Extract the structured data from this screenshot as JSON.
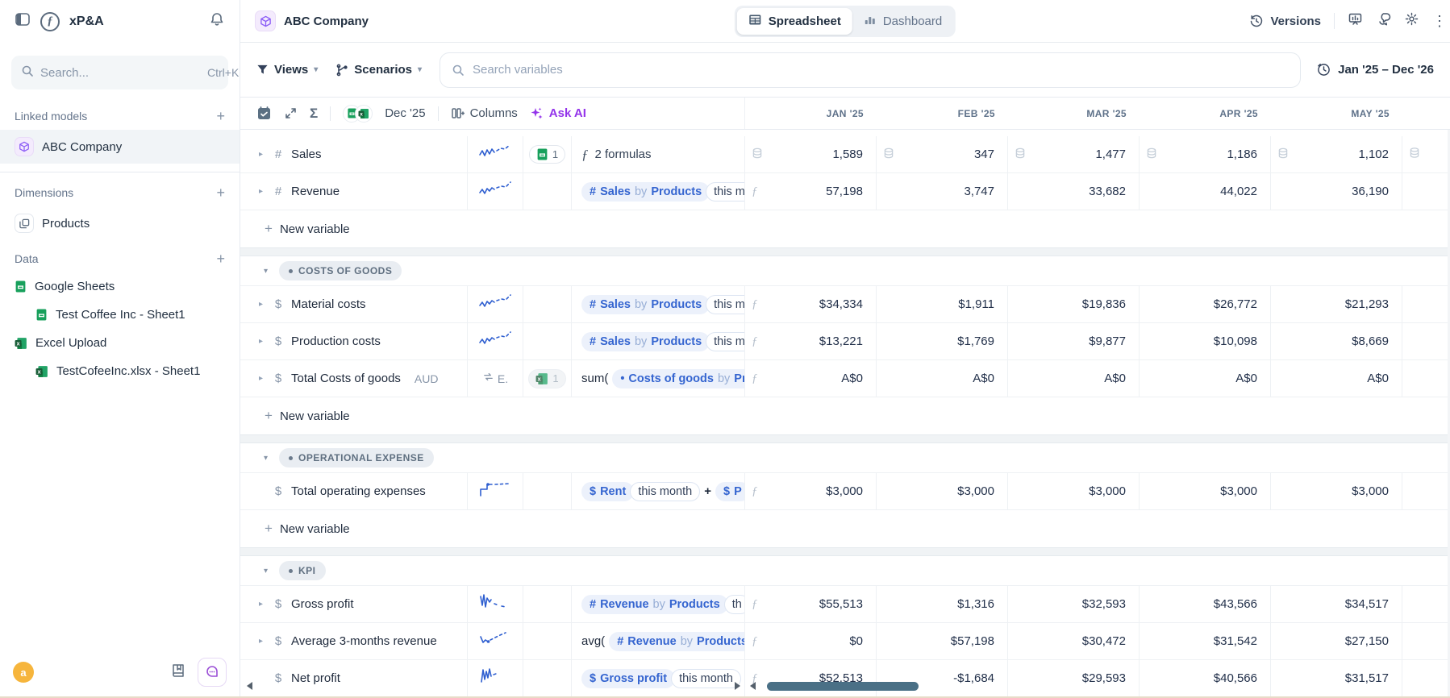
{
  "sidebar": {
    "logo_text": "xP&A",
    "search": {
      "placeholder": "Search...",
      "shortcut": "Ctrl+K"
    },
    "sections": [
      {
        "label": "Linked models",
        "items": [
          {
            "label": "ABC Company",
            "icon": "cube",
            "selected": true
          }
        ]
      },
      {
        "label": "Dimensions",
        "items": [
          {
            "label": "Products",
            "icon": "copy"
          }
        ]
      },
      {
        "label": "Data",
        "items": [
          {
            "label": "Google Sheets",
            "icon": "gsheets"
          },
          {
            "label": "Test Coffee Inc - Sheet1",
            "icon": "gsheets",
            "nested": true
          },
          {
            "label": "Excel Upload",
            "icon": "excel"
          },
          {
            "label": "TestCofeeInc.xlsx - Sheet1",
            "icon": "excel",
            "nested": true
          }
        ]
      }
    ],
    "avatar_letter": "a"
  },
  "header": {
    "company": "ABC Company",
    "tabs": [
      {
        "label": "Spreadsheet",
        "icon": "spreadsheet",
        "active": true
      },
      {
        "label": "Dashboard",
        "icon": "dashboard",
        "active": false
      }
    ],
    "versions_label": "Versions"
  },
  "controls": {
    "views_label": "Views",
    "scenarios_label": "Scenarios",
    "search_placeholder": "Search variables",
    "date_range": "Jan '25 – Dec '26"
  },
  "toolbar": {
    "period_label": "Dec '25",
    "columns_label": "Columns",
    "ask_ai_label": "Ask AI"
  },
  "table": {
    "months": [
      "JAN '25",
      "FEB '25",
      "MAR '25",
      "APR '25",
      "MAY '25"
    ],
    "new_variable_label": "New variable",
    "rows": [
      {
        "kind": "var",
        "icon": "hash",
        "chevron": true,
        "name": "Sales",
        "spark": "rise1",
        "badge": {
          "type": "gsheets",
          "count": "1"
        },
        "formula": [
          {
            "t": "formulas",
            "text": "2 formulas"
          }
        ],
        "indicator": "db-all",
        "values": [
          "1,589",
          "347",
          "1,477",
          "1,186",
          "1,102"
        ]
      },
      {
        "kind": "var",
        "icon": "hash",
        "chevron": true,
        "name": "Revenue",
        "spark": "rise2",
        "formula": [
          {
            "t": "pill",
            "icon": "#",
            "parts": [
              [
                "Sales",
                "v"
              ],
              [
                "by",
                "k"
              ],
              [
                "Products",
                "v"
              ]
            ],
            "tail": "this m"
          }
        ],
        "indicator": "f",
        "values": [
          "57,198",
          "3,747",
          "33,682",
          "44,022",
          "36,190"
        ]
      },
      {
        "kind": "new"
      },
      {
        "kind": "band"
      },
      {
        "kind": "section",
        "label": "COSTS OF GOODS"
      },
      {
        "kind": "var",
        "icon": "dollar",
        "chevron": true,
        "name": "Material costs",
        "spark": "rise2",
        "formula": [
          {
            "t": "pill",
            "icon": "#",
            "parts": [
              [
                "Sales",
                "v"
              ],
              [
                "by",
                "k"
              ],
              [
                "Products",
                "v"
              ]
            ],
            "tail": "this m"
          }
        ],
        "indicator": "f",
        "values": [
          "$34,334",
          "$1,911",
          "$19,836",
          "$26,772",
          "$21,293"
        ]
      },
      {
        "kind": "var",
        "icon": "dollar",
        "chevron": true,
        "name": "Production costs",
        "spark": "rise2",
        "formula": [
          {
            "t": "pill",
            "icon": "#",
            "parts": [
              [
                "Sales",
                "v"
              ],
              [
                "by",
                "k"
              ],
              [
                "Products",
                "v"
              ]
            ],
            "tail": "this m"
          }
        ],
        "indicator": "f",
        "values": [
          "$13,221",
          "$1,769",
          "$9,877",
          "$10,098",
          "$8,669"
        ]
      },
      {
        "kind": "var",
        "icon": "dollar",
        "chevron": true,
        "name": "Total Costs of goods",
        "suffix": "AUD",
        "exchange": {
          "label": "E."
        },
        "badge": {
          "type": "excel",
          "count": "1",
          "faded": true
        },
        "formula": [
          {
            "t": "prefix",
            "text": "sum("
          },
          {
            "t": "pill",
            "icon": "dot",
            "parts": [
              [
                "Costs of goods",
                "v"
              ],
              [
                "by",
                "k"
              ],
              [
                "Pr",
                "v"
              ]
            ]
          }
        ],
        "indicator": "f",
        "values": [
          "A$0",
          "A$0",
          "A$0",
          "A$0",
          "A$0"
        ]
      },
      {
        "kind": "new"
      },
      {
        "kind": "band"
      },
      {
        "kind": "section",
        "label": "OPERATIONAL EXPENSE"
      },
      {
        "kind": "var",
        "icon": "dollar",
        "chevron": false,
        "name": "Total operating expenses",
        "spark": "step",
        "formula": [
          {
            "t": "pill",
            "icon": "$",
            "parts": [
              [
                "Rent",
                "v"
              ]
            ],
            "tail": "this month"
          },
          {
            "t": "op",
            "text": "+"
          },
          {
            "t": "pill",
            "icon": "$",
            "parts": [
              [
                "P",
                "v"
              ]
            ]
          }
        ],
        "indicator": "f",
        "values": [
          "$3,000",
          "$3,000",
          "$3,000",
          "$3,000",
          "$3,000"
        ]
      },
      {
        "kind": "new"
      },
      {
        "kind": "band"
      },
      {
        "kind": "section",
        "label": "KPI"
      },
      {
        "kind": "var",
        "icon": "dollar",
        "chevron": true,
        "name": "Gross profit",
        "spark": "volatile",
        "formula": [
          {
            "t": "pill",
            "icon": "#",
            "parts": [
              [
                "Revenue",
                "v"
              ],
              [
                "by",
                "k"
              ],
              [
                "Products",
                "v"
              ]
            ],
            "tail": "th"
          }
        ],
        "indicator": "f",
        "values": [
          "$55,513",
          "$1,316",
          "$32,593",
          "$43,566",
          "$34,517"
        ]
      },
      {
        "kind": "var",
        "icon": "dollar",
        "chevron": true,
        "name": "Average 3-months revenue",
        "spark": "dip",
        "formula": [
          {
            "t": "prefix",
            "text": "avg("
          },
          {
            "t": "pill",
            "icon": "#",
            "parts": [
              [
                "Revenue",
                "v"
              ],
              [
                "by",
                "k"
              ],
              [
                "Products",
                "v"
              ]
            ]
          }
        ],
        "indicator": "f",
        "values": [
          "$0",
          "$57,198",
          "$30,472",
          "$31,542",
          "$27,150"
        ]
      },
      {
        "kind": "var",
        "icon": "dollar",
        "chevron": false,
        "name": "Net profit",
        "spark": "spiky",
        "formula": [
          {
            "t": "pill",
            "icon": "$",
            "parts": [
              [
                "Gross profit",
                "v"
              ]
            ],
            "tail": "this month"
          }
        ],
        "indicator": "f",
        "values": [
          "$52,513",
          "-$1,684",
          "$29,593",
          "$40,566",
          "$31,517"
        ]
      }
    ]
  }
}
